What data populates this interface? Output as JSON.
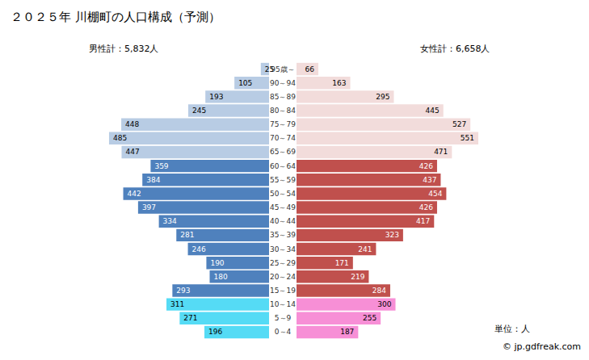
{
  "chart_data": {
    "type": "bar",
    "orientation": "horizontal",
    "title": "２０２５年 川棚町の人口構成（予測）",
    "categories": [
      "95歳～",
      "90～94",
      "85～89",
      "80～84",
      "75～79",
      "70～74",
      "65～69",
      "60～64",
      "55～59",
      "50～54",
      "45～49",
      "40～44",
      "35～39",
      "30～34",
      "25～29",
      "20～24",
      "15～19",
      "10～14",
      "5～9",
      "0～4"
    ],
    "series": [
      {
        "name": "男性計：5,832人",
        "values": [
          25,
          105,
          193,
          245,
          448,
          485,
          447,
          359,
          384,
          442,
          397,
          334,
          281,
          246,
          190,
          180,
          293,
          311,
          271,
          196
        ],
        "colors": [
          "#b8cce4",
          "#b8cce4",
          "#b8cce4",
          "#b8cce4",
          "#b8cce4",
          "#b8cce4",
          "#b8cce4",
          "#4f81bd",
          "#4f81bd",
          "#4f81bd",
          "#4f81bd",
          "#4f81bd",
          "#4f81bd",
          "#4f81bd",
          "#4f81bd",
          "#4f81bd",
          "#4f81bd",
          "#55dbf5",
          "#55dbf5",
          "#55dbf5"
        ]
      },
      {
        "name": "女性計：6,658人",
        "values": [
          66,
          163,
          295,
          445,
          527,
          551,
          471,
          426,
          437,
          454,
          426,
          417,
          323,
          241,
          171,
          219,
          284,
          300,
          255,
          187
        ],
        "colors": [
          "#f2dcdb",
          "#f2dcdb",
          "#f2dcdb",
          "#f2dcdb",
          "#f2dcdb",
          "#f2dcdb",
          "#f2dcdb",
          "#c0504d",
          "#c0504d",
          "#c0504d",
          "#c0504d",
          "#c0504d",
          "#c0504d",
          "#c0504d",
          "#c0504d",
          "#c0504d",
          "#c0504d",
          "#f78fd6",
          "#f78fd6",
          "#f78fd6"
        ]
      }
    ],
    "xlim": [
      0,
      600
    ],
    "tick_labels": "y",
    "data_labels": true,
    "grid": false,
    "annotations": [
      "単位：人",
      "© jp.gdfreak.com"
    ]
  }
}
